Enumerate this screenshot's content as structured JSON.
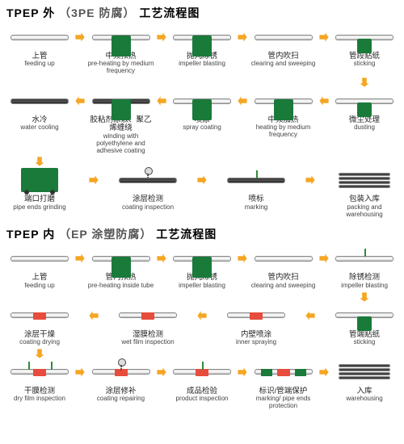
{
  "colors": {
    "arrow": "#f5a623",
    "green": "#1a7a3a",
    "pipe_gray": "#cccccc",
    "pipe_black": "#333333",
    "red": "#e74c3c",
    "text": "#222222"
  },
  "section1": {
    "title_parts": [
      "TPEP 外 ",
      "（3PE 防腐）",
      " 工艺流程图"
    ],
    "rows": [
      {
        "dir": "right",
        "steps": [
          {
            "cn": "上管",
            "en": "feeding up",
            "icon": "pipe"
          },
          {
            "cn": "中频预热",
            "en": "pre-heating by medium frequency",
            "icon": "pipe-green"
          },
          {
            "cn": "抛丸除锈",
            "en": "impeller blasting",
            "icon": "pipe-green"
          },
          {
            "cn": "管内吹扫",
            "en": "clearing and sweeping",
            "icon": "pipe-plain"
          },
          {
            "cn": "管段贴纸",
            "en": "sticking",
            "icon": "pipe-green-sm"
          }
        ]
      },
      {
        "dir": "left",
        "steps": [
          {
            "cn": "水冷",
            "en": "water cooling",
            "icon": "pipe-black"
          },
          {
            "cn": "胶粘剂涂敷、聚乙烯缠绕",
            "en": "winding with polyethylene and adhesive coating",
            "icon": "pipe-black-green"
          },
          {
            "cn": "喷涂",
            "en": "spray coating",
            "icon": "pipe-green"
          },
          {
            "cn": "中频加热",
            "en": "heating by medium frequency",
            "icon": "pipe-green"
          },
          {
            "cn": "微尘处理",
            "en": "dusting",
            "icon": "pipe-green-sm"
          }
        ]
      },
      {
        "dir": "right",
        "steps": [
          {
            "cn": "端口打磨",
            "en": "pipe ends grinding",
            "icon": "machine"
          },
          {
            "cn": "涂层检测",
            "en": "coating inspection",
            "icon": "pipe-black-spring"
          },
          {
            "cn": "喷标",
            "en": "marking",
            "icon": "pipe-black-mark"
          },
          {
            "cn": "包装入库",
            "en": "packing and warehousing",
            "icon": "stack-black"
          }
        ]
      }
    ]
  },
  "section2": {
    "title_parts": [
      "TPEP 内 ",
      "（EP 涂塑防腐）",
      " 工艺流程图"
    ],
    "rows": [
      {
        "dir": "right",
        "steps": [
          {
            "cn": "上管",
            "en": "feeding up",
            "icon": "pipe"
          },
          {
            "cn": "管内预热",
            "en": "pre-heating inside tube",
            "icon": "pipe-green"
          },
          {
            "cn": "抛丸除锈",
            "en": "impeller blasting",
            "icon": "pipe-green"
          },
          {
            "cn": "管内吹扫",
            "en": "clearing and sweeping",
            "icon": "pipe-plain"
          },
          {
            "cn": "除锈检测",
            "en": "impeller blasting",
            "icon": "pipe-mark"
          }
        ]
      },
      {
        "dir": "left",
        "steps": [
          {
            "cn": "涂层干燥",
            "en": "coating drying",
            "icon": "pipe-red"
          },
          {
            "cn": "湿膜检测",
            "en": "wet film inspection",
            "icon": "pipe-red"
          },
          {
            "cn": "内壁喷涂",
            "en": "inner spraying",
            "icon": "pipe-red"
          },
          {
            "cn": "管端贴纸",
            "en": "sticking",
            "icon": "pipe-green-sm"
          }
        ]
      },
      {
        "dir": "right",
        "steps": [
          {
            "cn": "干膜检测",
            "en": "dry film inspection",
            "icon": "pipe-red-mark2"
          },
          {
            "cn": "涂层修补",
            "en": "coating repairing",
            "icon": "pipe-red-spring"
          },
          {
            "cn": "成品检验",
            "en": "product inspection",
            "icon": "pipe-red-mark"
          },
          {
            "cn": "标识/管端保护",
            "en": "marking/ pipe ends protection",
            "icon": "pipe-red-green"
          },
          {
            "cn": "入库",
            "en": "warehousing",
            "icon": "stack-black"
          }
        ]
      }
    ]
  }
}
